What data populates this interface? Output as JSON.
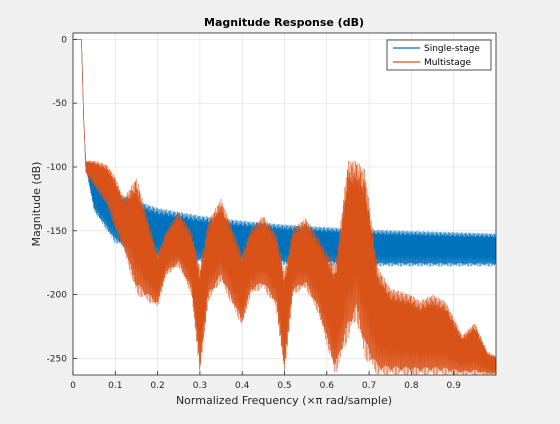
{
  "chart_data": {
    "type": "line",
    "title": "Magnitude Response (dB)",
    "xlabel": "Normalized Frequency  (×π rad/sample)",
    "ylabel": "Magnitude (dB)",
    "xlim": [
      0,
      1
    ],
    "ylim": [
      -263,
      5
    ],
    "x_ticks": [
      0,
      0.1,
      0.2,
      0.3,
      0.4,
      0.5,
      0.6,
      0.7,
      0.8,
      0.9
    ],
    "x_tick_labels": [
      "0",
      "0.1",
      "0.2",
      "0.3",
      "0.4",
      "0.5",
      "0.6",
      "0.7",
      "0.8",
      "0.9"
    ],
    "y_ticks": [
      0,
      -50,
      -100,
      -150,
      -200,
      -250
    ],
    "y_tick_labels": [
      "0",
      "-50",
      "-100",
      "-150",
      "-200",
      "-250"
    ],
    "grid": true,
    "legend_position": "top-right",
    "series": [
      {
        "name": "Single-stage",
        "color": "#0072BD",
        "passband_edge": 0.02,
        "envelope": {
          "x": [
            0,
            0.02,
            0.025,
            0.03,
            0.05,
            0.1,
            0.2,
            0.3,
            0.4,
            0.5,
            0.6,
            0.7,
            0.8,
            0.9,
            1.0
          ],
          "upper": [
            0,
            0,
            -60,
            -95,
            -110,
            -120,
            -132,
            -138,
            -142,
            -145,
            -147,
            -149,
            -150,
            -151,
            -152
          ],
          "lower": [
            0,
            0,
            -60,
            -100,
            -135,
            -160,
            -172,
            -175,
            -176,
            -177,
            -177,
            -178,
            -178,
            -178,
            -178
          ]
        }
      },
      {
        "name": "Multistage",
        "color": "#D95319",
        "passband_edge": 0.02,
        "envelope": {
          "x": [
            0,
            0.02,
            0.025,
            0.03,
            0.05,
            0.08,
            0.1,
            0.12,
            0.15,
            0.2,
            0.22,
            0.25,
            0.28,
            0.3,
            0.32,
            0.35,
            0.4,
            0.42,
            0.45,
            0.48,
            0.5,
            0.52,
            0.55,
            0.58,
            0.62,
            0.65,
            0.67,
            0.69,
            0.72,
            0.75,
            0.78,
            0.8,
            0.82,
            0.85,
            0.88,
            0.9,
            0.92,
            0.95,
            0.98,
            1.0
          ],
          "upper": [
            0,
            0,
            -60,
            -95,
            -95,
            -98,
            -108,
            -125,
            -108,
            -168,
            -150,
            -135,
            -150,
            -178,
            -142,
            -125,
            -168,
            -148,
            -138,
            -152,
            -182,
            -148,
            -140,
            -155,
            -178,
            -95,
            -95,
            -102,
            -178,
            -195,
            -198,
            -200,
            -205,
            -200,
            -205,
            -218,
            -232,
            -222,
            -245,
            -248
          ],
          "lower": [
            0,
            0,
            -60,
            -105,
            -115,
            -130,
            -150,
            -165,
            -200,
            -210,
            -185,
            -178,
            -200,
            -263,
            -205,
            -190,
            -225,
            -200,
            -195,
            -210,
            -263,
            -200,
            -195,
            -215,
            -263,
            -235,
            -220,
            -250,
            -263,
            -263,
            -263,
            -263,
            -263,
            -263,
            -263,
            -263,
            -263,
            -263,
            -263,
            -263
          ]
        }
      }
    ]
  }
}
